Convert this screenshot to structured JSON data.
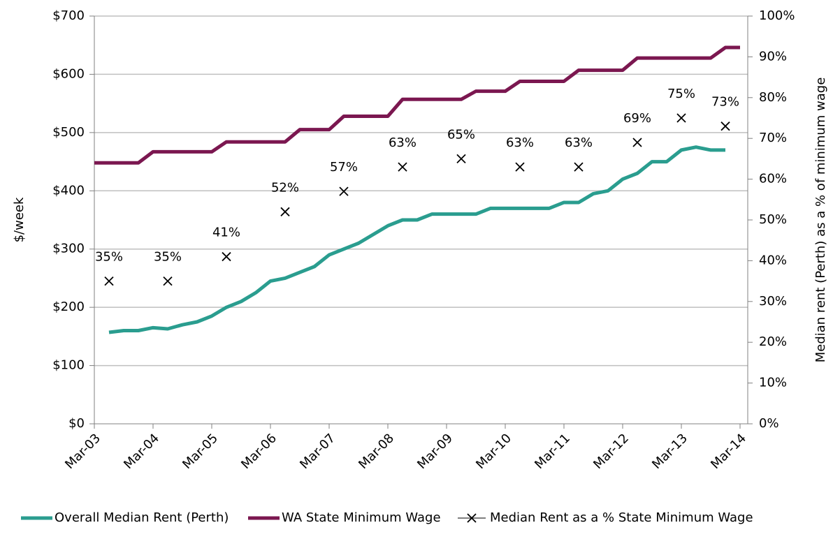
{
  "chart_data": {
    "type": "line",
    "categories": [
      "Mar-03",
      null,
      null,
      null,
      "Mar-04",
      null,
      null,
      null,
      "Mar-05",
      null,
      null,
      null,
      "Mar-06",
      null,
      null,
      null,
      "Mar-07",
      null,
      null,
      null,
      "Mar-08",
      null,
      null,
      null,
      "Mar-09",
      null,
      null,
      null,
      "Mar-10",
      null,
      null,
      null,
      "Mar-11",
      null,
      null,
      null,
      "Mar-12",
      null,
      null,
      null,
      "Mar-13",
      null,
      null,
      null,
      "Mar-14"
    ],
    "series": [
      {
        "name": "Overall Median Rent (Perth)",
        "color": "#2a9d8f",
        "values": [
          null,
          157,
          160,
          160,
          165,
          163,
          170,
          175,
          185,
          200,
          210,
          225,
          245,
          250,
          260,
          270,
          290,
          300,
          310,
          325,
          340,
          350,
          350,
          360,
          360,
          360,
          360,
          370,
          370,
          370,
          370,
          370,
          380,
          380,
          395,
          400,
          420,
          430,
          450,
          450,
          470,
          475,
          470,
          470,
          null
        ]
      },
      {
        "name": "WA State Minimum Wage",
        "color": "#7b1750",
        "values": [
          448,
          448,
          448,
          448,
          467,
          467,
          467,
          467,
          467,
          484,
          484,
          484,
          484,
          484,
          505,
          505,
          505,
          528,
          528,
          528,
          528,
          557,
          557,
          557,
          557,
          557,
          571,
          571,
          571,
          588,
          588,
          588,
          588,
          607,
          607,
          607,
          607,
          628,
          628,
          628,
          628,
          628,
          628,
          646,
          646
        ]
      },
      {
        "name": "Median Rent as a % State Minimum Wage",
        "color": "#000000",
        "axis": "y2",
        "marker": "x",
        "values": [
          null,
          35,
          null,
          null,
          null,
          35,
          null,
          null,
          null,
          41,
          null,
          null,
          null,
          52,
          null,
          null,
          null,
          57,
          null,
          null,
          null,
          63,
          null,
          null,
          null,
          65,
          null,
          null,
          null,
          63,
          null,
          null,
          null,
          63,
          null,
          null,
          null,
          69,
          null,
          null,
          75,
          null,
          null,
          73,
          null
        ],
        "value_labels": [
          null,
          "35%",
          null,
          null,
          null,
          "35%",
          null,
          null,
          null,
          "41%",
          null,
          null,
          null,
          "52%",
          null,
          null,
          null,
          "57%",
          null,
          null,
          null,
          "63%",
          null,
          null,
          null,
          "65%",
          null,
          null,
          null,
          "63%",
          null,
          null,
          null,
          "63%",
          null,
          null,
          null,
          "69%",
          null,
          null,
          "75%",
          null,
          null,
          "73%",
          null
        ]
      }
    ],
    "ylabel": "$/week",
    "y2label": "Median rent (Perth) as a % of minimum wage",
    "ylim": [
      0,
      700
    ],
    "yticks": [
      {
        "value": 0,
        "label": "$0"
      },
      {
        "value": 100,
        "label": "$100"
      },
      {
        "value": 200,
        "label": "$200"
      },
      {
        "value": 300,
        "label": "$300"
      },
      {
        "value": 400,
        "label": "$400"
      },
      {
        "value": 500,
        "label": "$500"
      },
      {
        "value": 600,
        "label": "$600"
      },
      {
        "value": 700,
        "label": "$700"
      }
    ],
    "y2lim": [
      0,
      100
    ],
    "y2ticks": [
      {
        "value": 0,
        "label": "0%"
      },
      {
        "value": 10,
        "label": "10%"
      },
      {
        "value": 20,
        "label": "20%"
      },
      {
        "value": 30,
        "label": "30%"
      },
      {
        "value": 40,
        "label": "40%"
      },
      {
        "value": 50,
        "label": "50%"
      },
      {
        "value": 60,
        "label": "60%"
      },
      {
        "value": 70,
        "label": "70%"
      },
      {
        "value": 80,
        "label": "80%"
      },
      {
        "value": 90,
        "label": "90%"
      },
      {
        "value": 100,
        "label": "100%"
      }
    ],
    "grid": true,
    "legend": "bottom"
  }
}
